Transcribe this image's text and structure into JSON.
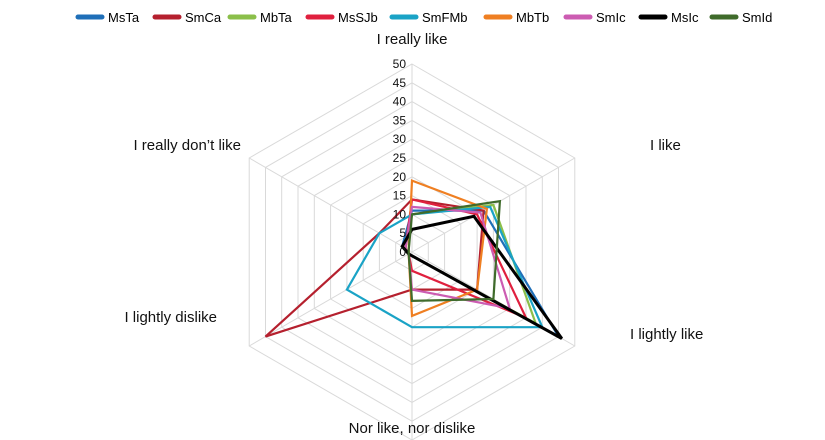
{
  "chart_data": {
    "type": "radar",
    "categories": [
      "I really like",
      "I like",
      "I lightly like",
      "Nor like, nor dislike",
      "I lightly dislike",
      "I really don’t like"
    ],
    "rlim": [
      0,
      50
    ],
    "ticks": [
      0,
      5,
      10,
      15,
      20,
      25,
      30,
      35,
      40,
      45,
      50
    ],
    "grid": true,
    "legend_position": "top",
    "series": [
      {
        "name": "MsTa",
        "color": "#1f6fb8",
        "values": [
          11,
          22,
          45,
          1,
          1,
          3
        ]
      },
      {
        "name": "SmCa",
        "color": "#b5202e",
        "values": [
          14,
          22,
          20,
          10,
          45,
          10
        ]
      },
      {
        "name": "MbTa",
        "color": "#8bbf4a",
        "values": [
          10,
          25,
          38,
          1,
          1,
          2
        ]
      },
      {
        "name": "MsSJb",
        "color": "#e0203e",
        "values": [
          14,
          20,
          35,
          5,
          1,
          2
        ]
      },
      {
        "name": "SmFMb",
        "color": "#1aa3c6",
        "values": [
          10,
          24,
          40,
          20,
          20,
          10
        ]
      },
      {
        "name": "MbTb",
        "color": "#ef7f22",
        "values": [
          19,
          23,
          20,
          17,
          1,
          1
        ]
      },
      {
        "name": "SmIc",
        "color": "#cc5cb2",
        "values": [
          12,
          21,
          30,
          10,
          1,
          2
        ]
      },
      {
        "name": "MsIc",
        "color": "#000000",
        "values": [
          6,
          19,
          46,
          1,
          1,
          3
        ]
      },
      {
        "name": "SmId",
        "color": "#3f6b2b",
        "values": [
          10,
          27,
          25,
          13,
          1,
          1
        ]
      }
    ]
  }
}
